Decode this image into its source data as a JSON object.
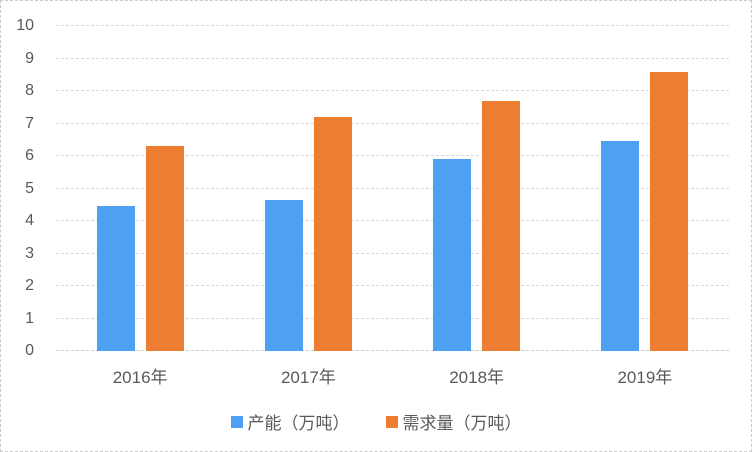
{
  "chart_data": {
    "type": "bar",
    "title": "",
    "categories": [
      "2016年",
      "2017年",
      "2018年",
      "2019年"
    ],
    "series": [
      {
        "name": "产能（万吨）",
        "color": "#4DA0F2",
        "values": [
          4.45,
          4.65,
          5.9,
          6.45
        ]
      },
      {
        "name": "需求量（万吨）",
        "color": "#ED7D31",
        "values": [
          6.3,
          7.2,
          7.7,
          8.6
        ]
      }
    ],
    "xlabel": "",
    "ylabel": "",
    "ylim": [
      0,
      10
    ],
    "ytick_step": 1,
    "yticks": [
      "0",
      "1",
      "2",
      "3",
      "4",
      "5",
      "6",
      "7",
      "8",
      "9",
      "10"
    ],
    "grid": true,
    "gridline_style": "dashed",
    "legend_position": "bottom",
    "colors": {
      "text": "#595959",
      "gridline": "#D9D9D9",
      "frame_border": "#C9C9C9",
      "background": "#FFFFFF"
    }
  }
}
